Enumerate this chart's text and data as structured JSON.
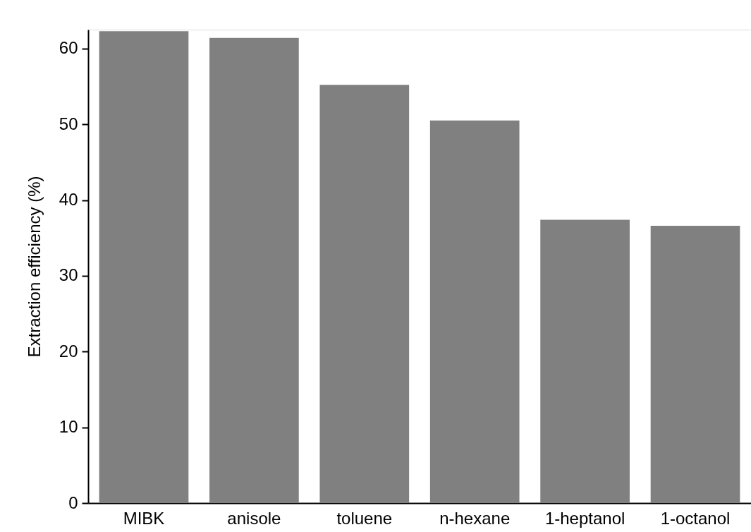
{
  "chart_data": {
    "type": "bar",
    "ylabel": "Extraction efficiency (%)",
    "categories": [
      "MIBK",
      "anisole",
      "toluene",
      "n-hexane",
      "1-heptanol",
      "1-octanol"
    ],
    "values": [
      62.3,
      61.4,
      55.2,
      50.5,
      37.4,
      36.6
    ],
    "color": "#808080",
    "ylim": [
      0,
      62.5
    ],
    "yticks": [
      0,
      10,
      20,
      30,
      40,
      50,
      60
    ],
    "grid": false
  }
}
